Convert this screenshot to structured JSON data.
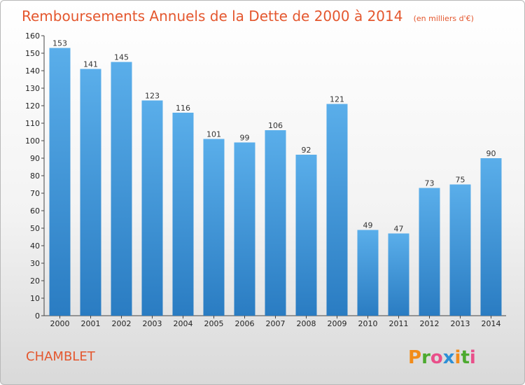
{
  "chart_data": {
    "type": "bar",
    "title": "Remboursements Annuels de la Dette de 2000 à 2014",
    "unit_note": "(en milliers d'€)",
    "categories": [
      "2000",
      "2001",
      "2002",
      "2003",
      "2004",
      "2005",
      "2006",
      "2007",
      "2008",
      "2009",
      "2010",
      "2011",
      "2012",
      "2013",
      "2014"
    ],
    "values": [
      153,
      141,
      145,
      123,
      116,
      101,
      99,
      106,
      92,
      121,
      49,
      47,
      73,
      75,
      90
    ],
    "ylim": [
      0,
      160
    ],
    "ytick_step": 10,
    "xlabel": "",
    "ylabel": "",
    "grid": false,
    "colors": {
      "bar_top": "#5aaeea",
      "bar_bottom": "#2a7cc2",
      "title": "#e4572e"
    }
  },
  "footer": {
    "place": "CHAMBLET",
    "brand_letters": [
      "P",
      "r",
      "o",
      "x",
      "i",
      "t",
      "i"
    ],
    "brand_colors": [
      "#f28c1a",
      "#4caa2f",
      "#e94f8a",
      "#2d8fd6",
      "#f28c1a",
      "#4caa2f",
      "#e94f8a"
    ]
  }
}
